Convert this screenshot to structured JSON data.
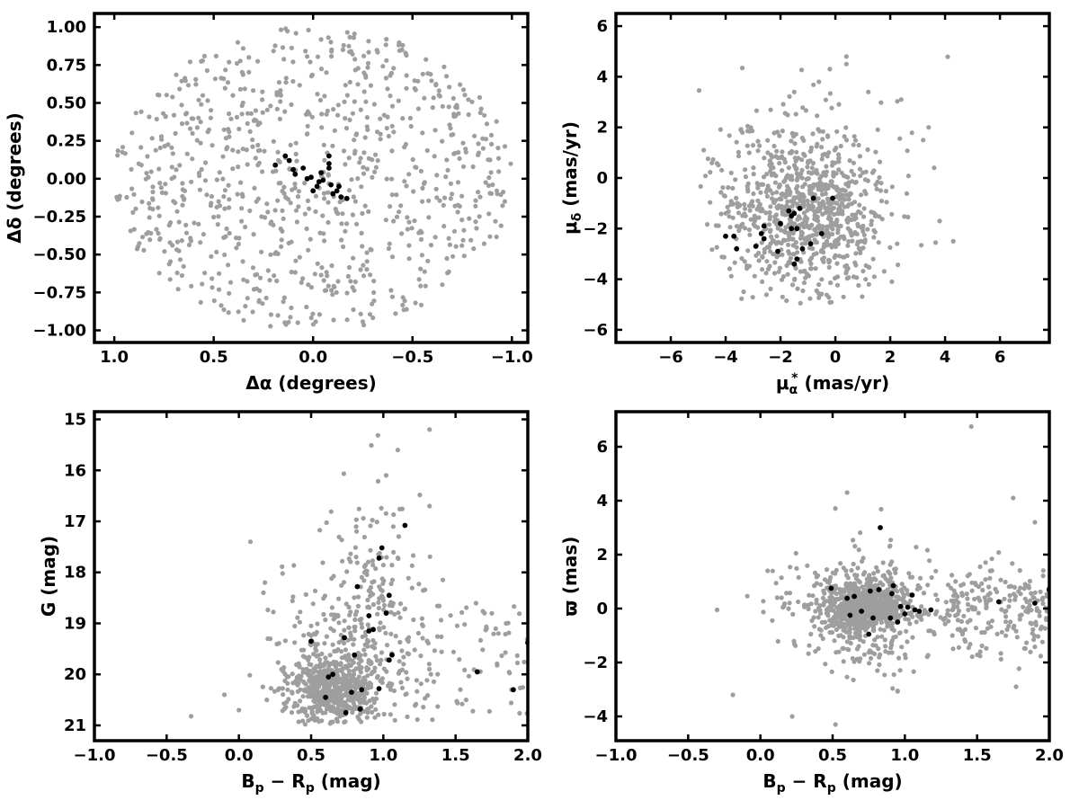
{
  "chart_data": [
    {
      "type": "scatter",
      "id": "sky-position",
      "title": "",
      "xlabel": "Δα (degrees)",
      "ylabel": "Δδ (degrees)",
      "xlim": [
        1.1,
        -1.08
      ],
      "ylim": [
        -1.08,
        1.09
      ],
      "x_inverted": true,
      "x_ticks": [
        1.0,
        0.5,
        0.0,
        -0.5,
        -1.0
      ],
      "x_tick_labels": [
        "1.0",
        "0.5",
        "0.0",
        "−0.5",
        "−1.0"
      ],
      "y_ticks": [
        1.0,
        0.75,
        0.5,
        0.25,
        0.0,
        -0.25,
        -0.5,
        -0.75,
        -1.0
      ],
      "y_tick_labels": [
        "1.00",
        "0.75",
        "0.50",
        "0.25",
        "0.00",
        "−0.25",
        "−0.50",
        "−0.75",
        "−1.00"
      ],
      "grid": false,
      "series": [
        {
          "role": "field",
          "color": "#9e9e9e",
          "distribution": "uniform disk, radius 1.0 deg",
          "count": 850,
          "points": []
        },
        {
          "role": "members",
          "color": "#000000",
          "points": [
            [
              0.19,
              0.09
            ],
            [
              0.14,
              0.15
            ],
            [
              0.12,
              0.12
            ],
            [
              0.1,
              0.06
            ],
            [
              0.09,
              0.03
            ],
            [
              0.05,
              0.07
            ],
            [
              0.03,
              0.0
            ],
            [
              0.01,
              0.01
            ],
            [
              -0.02,
              -0.05
            ],
            [
              -0.05,
              -0.01
            ],
            [
              -0.04,
              0.04
            ],
            [
              0.0,
              -0.08
            ],
            [
              -0.08,
              0.15
            ],
            [
              -0.08,
              0.1
            ],
            [
              -0.08,
              0.07
            ],
            [
              -0.09,
              -0.04
            ],
            [
              -0.1,
              -0.1
            ],
            [
              -0.12,
              -0.08
            ],
            [
              -0.13,
              -0.05
            ],
            [
              -0.14,
              -0.12
            ],
            [
              -0.17,
              -0.13
            ],
            [
              -0.03,
              -0.02
            ]
          ]
        }
      ]
    },
    {
      "type": "scatter",
      "id": "proper-motion",
      "title": "",
      "xlabel": "μα* (mas/yr)",
      "ylabel": "μδ (mas/yr)",
      "xlim": [
        -8,
        7.8
      ],
      "ylim": [
        -6.5,
        6.5
      ],
      "x_ticks": [
        -6,
        -4,
        -2,
        0,
        2,
        4,
        6
      ],
      "x_tick_labels": [
        "−6",
        "−4",
        "−2",
        "0",
        "2",
        "4",
        "6"
      ],
      "y_ticks": [
        6,
        4,
        2,
        0,
        -2,
        -4,
        -6
      ],
      "y_tick_labels": [
        "6",
        "4",
        "2",
        "0",
        "−2",
        "−4",
        "−6"
      ],
      "grid": false,
      "series": [
        {
          "role": "field",
          "color": "#9e9e9e",
          "distribution": "concentrated near (-1.0, -1.5)",
          "count": 900,
          "points": [
            [
              0.4,
              4.8
            ],
            [
              0.4,
              4.5
            ],
            [
              -0.2,
              4.3
            ],
            [
              -0.6,
              3.8
            ],
            [
              -1.5,
              3.4
            ],
            [
              1.2,
              3.4
            ],
            [
              2.4,
              3.1
            ],
            [
              3.4,
              2.0
            ],
            [
              3.2,
              1.5
            ],
            [
              3.6,
              0.4
            ],
            [
              3.8,
              -1.7
            ],
            [
              4.3,
              -2.5
            ],
            [
              -4.8,
              1.1
            ]
          ]
        },
        {
          "role": "members",
          "color": "#000000",
          "points": [
            [
              -0.8,
              -0.8
            ],
            [
              -0.1,
              -0.8
            ],
            [
              -1.3,
              -1.2
            ],
            [
              -1.5,
              -1.4
            ],
            [
              -1.7,
              -1.3
            ],
            [
              -1.6,
              -1.5
            ],
            [
              -2.0,
              -1.8
            ],
            [
              -2.6,
              -1.9
            ],
            [
              -1.6,
              -2.0
            ],
            [
              -1.4,
              -2.0
            ],
            [
              -2.7,
              -2.2
            ],
            [
              -2.6,
              -2.4
            ],
            [
              -0.5,
              -2.2
            ],
            [
              -0.9,
              -2.6
            ],
            [
              -3.7,
              -2.3
            ],
            [
              -4.0,
              -2.3
            ],
            [
              -2.1,
              -2.9
            ],
            [
              -1.2,
              -2.8
            ],
            [
              -2.9,
              -2.7
            ],
            [
              -3.6,
              -2.8
            ],
            [
              -1.4,
              -3.2
            ],
            [
              -1.5,
              -3.4
            ]
          ]
        }
      ]
    },
    {
      "type": "scatter",
      "id": "color-magnitude",
      "title": "",
      "xlabel": "Bp − Rp (mag)",
      "ylabel": "G (mag)",
      "xlim": [
        -1.0,
        2.0
      ],
      "ylim": [
        21.3,
        14.85
      ],
      "y_inverted": true,
      "x_ticks": [
        -1.0,
        -0.5,
        0.0,
        0.5,
        1.0,
        1.5,
        2.0
      ],
      "x_tick_labels": [
        "−1.0",
        "−0.5",
        "0.0",
        "0.5",
        "1.0",
        "1.5",
        "2.0"
      ],
      "y_ticks": [
        21,
        20,
        19,
        18,
        17,
        16,
        15
      ],
      "y_tick_labels": [
        "21",
        "20",
        "19",
        "18",
        "17",
        "16",
        "15"
      ],
      "grid": false,
      "series": [
        {
          "role": "field",
          "color": "#9e9e9e",
          "distribution": "dense near Bp−Rp 0.6, G 20.3, widening to faint end",
          "count": 950,
          "points": [
            [
              -0.33,
              20.82
            ],
            [
              -0.1,
              20.4
            ],
            [
              0.0,
              20.7
            ],
            [
              0.08,
              17.4
            ],
            [
              0.17,
              18.4
            ],
            [
              0.18,
              18.2
            ],
            [
              1.02,
              16.1
            ],
            [
              1.1,
              15.6
            ],
            [
              1.32,
              15.2
            ],
            [
              1.32,
              16.7
            ],
            [
              1.7,
              18.8
            ],
            [
              1.85,
              19.0
            ]
          ]
        },
        {
          "role": "members",
          "color": "#000000",
          "points": [
            [
              0.74,
              20.75
            ],
            [
              0.84,
              20.68
            ],
            [
              0.6,
              20.45
            ],
            [
              0.78,
              20.35
            ],
            [
              0.85,
              20.3
            ],
            [
              0.97,
              20.28
            ],
            [
              0.62,
              20.05
            ],
            [
              0.65,
              20.0
            ],
            [
              1.04,
              19.72
            ],
            [
              1.06,
              19.62
            ],
            [
              0.8,
              19.62
            ],
            [
              0.5,
              19.35
            ],
            [
              0.73,
              19.28
            ],
            [
              0.9,
              19.15
            ],
            [
              0.93,
              19.12
            ],
            [
              0.9,
              18.85
            ],
            [
              1.02,
              18.8
            ],
            [
              1.04,
              18.45
            ],
            [
              0.82,
              18.28
            ],
            [
              0.97,
              17.72
            ],
            [
              0.99,
              17.52
            ],
            [
              1.15,
              17.08
            ],
            [
              1.65,
              19.95
            ],
            [
              1.9,
              20.3
            ],
            [
              2.0,
              19.38
            ]
          ]
        }
      ]
    },
    {
      "type": "scatter",
      "id": "parallax-color",
      "title": "",
      "xlabel": "Bp − Rp (mag)",
      "ylabel": "ϖ (mas)",
      "xlim": [
        -1.0,
        2.0
      ],
      "ylim": [
        -4.9,
        7.3
      ],
      "x_ticks": [
        -1.0,
        -0.5,
        0.0,
        0.5,
        1.0,
        1.5,
        2.0
      ],
      "x_tick_labels": [
        "−1.0",
        "−0.5",
        "0.0",
        "0.5",
        "1.0",
        "1.5",
        "2.0"
      ],
      "y_ticks": [
        6,
        4,
        2,
        0,
        -2,
        -4
      ],
      "y_tick_labels": [
        "6",
        "4",
        "2",
        "0",
        "−2",
        "−4"
      ],
      "grid": false,
      "series": [
        {
          "role": "field",
          "color": "#9e9e9e",
          "distribution": "dense near Bp−Rp 0.7, ϖ 0",
          "count": 1200,
          "points": [
            [
              1.46,
              6.75
            ],
            [
              -0.19,
              -3.2
            ],
            [
              -0.3,
              -0.05
            ],
            [
              0.05,
              1.4
            ],
            [
              0.22,
              -4.0
            ],
            [
              0.52,
              -4.3
            ],
            [
              0.6,
              4.3
            ],
            [
              1.75,
              4.1
            ],
            [
              1.9,
              3.2
            ],
            [
              1.77,
              -2.9
            ]
          ]
        },
        {
          "role": "members",
          "color": "#000000",
          "points": [
            [
              0.83,
              3.0
            ],
            [
              0.49,
              0.75
            ],
            [
              0.65,
              0.45
            ],
            [
              0.6,
              0.38
            ],
            [
              0.76,
              0.65
            ],
            [
              0.82,
              0.7
            ],
            [
              0.91,
              0.55
            ],
            [
              1.05,
              0.5
            ],
            [
              0.7,
              -0.1
            ],
            [
              0.78,
              -0.35
            ],
            [
              0.9,
              -0.35
            ],
            [
              0.62,
              -0.25
            ],
            [
              0.95,
              -0.5
            ],
            [
              0.97,
              0.08
            ],
            [
              1.02,
              0.05
            ],
            [
              1.07,
              -0.05
            ],
            [
              1.1,
              -0.1
            ],
            [
              1.18,
              -0.05
            ],
            [
              1.0,
              -0.2
            ],
            [
              0.75,
              -0.95
            ],
            [
              1.65,
              0.25
            ],
            [
              1.9,
              0.2
            ],
            [
              2.0,
              0.7
            ],
            [
              0.92,
              0.85
            ]
          ]
        }
      ]
    }
  ]
}
